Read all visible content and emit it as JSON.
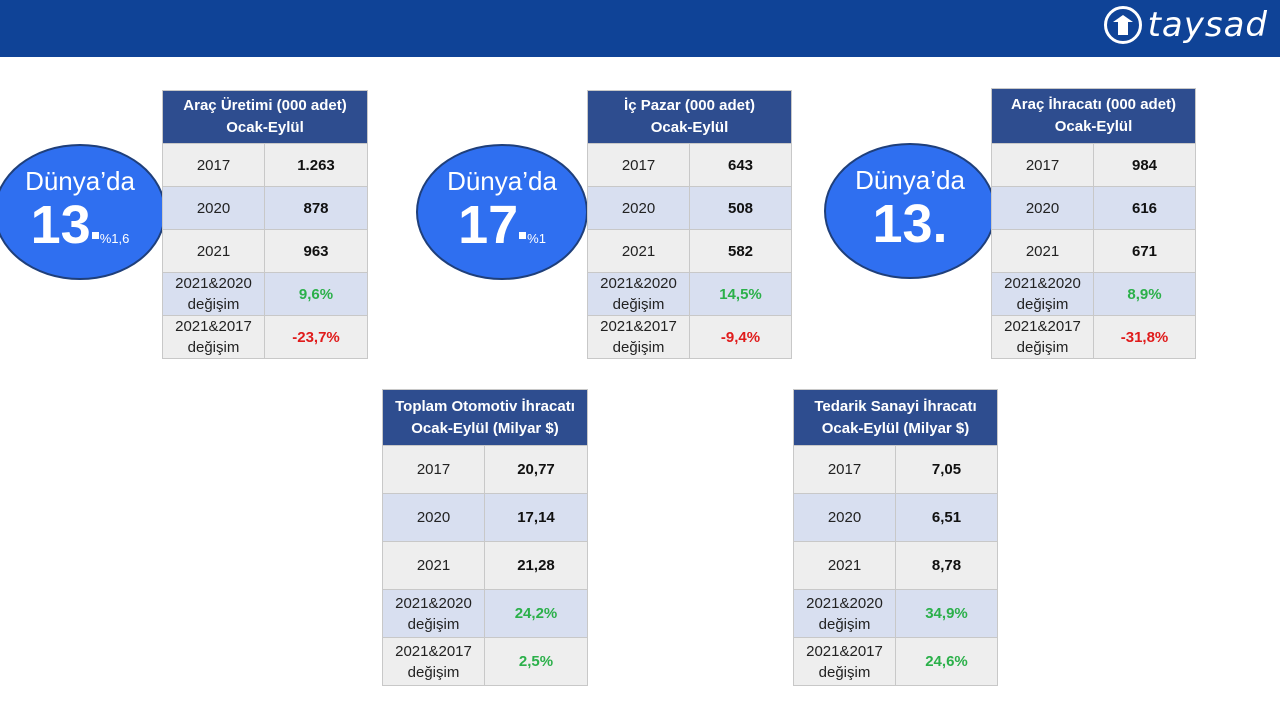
{
  "logo": {
    "text": "taysad"
  },
  "bubbles": [
    {
      "label": "Dünya’da",
      "rank": "13",
      "share": "%1,6"
    },
    {
      "label": "Dünya’da",
      "rank": "17",
      "share": "%1"
    },
    {
      "label": "Dünya’da",
      "rank": "13."
    }
  ],
  "tables": [
    {
      "title1": "Araç Üretimi (000 adet)",
      "title2": "Ocak-Eylül",
      "rows": [
        [
          "2017",
          "1.263"
        ],
        [
          "2020",
          "878"
        ],
        [
          "2021",
          "963"
        ]
      ],
      "chg1_l1": "2021&2020",
      "chg1_l2": "değişim",
      "chg1_val": "9,6%",
      "chg2_l1": "2021&2017",
      "chg2_l2": "değişim",
      "chg2_val": "-23,7%"
    },
    {
      "title1": "İç Pazar (000 adet)",
      "title2": "Ocak-Eylül",
      "rows": [
        [
          "2017",
          "643"
        ],
        [
          "2020",
          "508"
        ],
        [
          "2021",
          "582"
        ]
      ],
      "chg1_l1": "2021&2020",
      "chg1_l2": "değişim",
      "chg1_val": "14,5%",
      "chg2_l1": "2021&2017",
      "chg2_l2": "değişim",
      "chg2_val": "-9,4%"
    },
    {
      "title1": "Araç İhracatı (000 adet)",
      "title2": "Ocak-Eylül",
      "rows": [
        [
          "2017",
          "984"
        ],
        [
          "2020",
          "616"
        ],
        [
          "2021",
          "671"
        ]
      ],
      "chg1_l1": "2021&2020",
      "chg1_l2": "değişim",
      "chg1_val": "8,9%",
      "chg2_l1": "2021&2017",
      "chg2_l2": "değişim",
      "chg2_val": "-31,8%"
    },
    {
      "title1": "Toplam Otomotiv İhracatı",
      "title2": "Ocak-Eylül (Milyar $)",
      "rows": [
        [
          "2017",
          "20,77"
        ],
        [
          "2020",
          "17,14"
        ],
        [
          "2021",
          "21,28"
        ]
      ],
      "chg1_l1": "2021&2020",
      "chg1_l2": "değişim",
      "chg1_val": "24,2%",
      "chg2_l1": "2021&2017",
      "chg2_l2": "değişim",
      "chg2_val": "2,5%"
    },
    {
      "title1": "Tedarik Sanayi İhracatı",
      "title2": "Ocak-Eylül (Milyar $)",
      "rows": [
        [
          "2017",
          "7,05"
        ],
        [
          "2020",
          "6,51"
        ],
        [
          "2021",
          "8,78"
        ]
      ],
      "chg1_l1": "2021&2020",
      "chg1_l2": "değişim",
      "chg1_val": "34,9%",
      "chg2_l1": "2021&2017",
      "chg2_l2": "değişim",
      "chg2_val": "24,6%"
    }
  ],
  "colors": {
    "header_bar": "#0f4397",
    "table_header": "#2e4d8f",
    "bubble": "#2f6ff0",
    "positive": "#2bb04a",
    "negative": "#e01b1b"
  }
}
